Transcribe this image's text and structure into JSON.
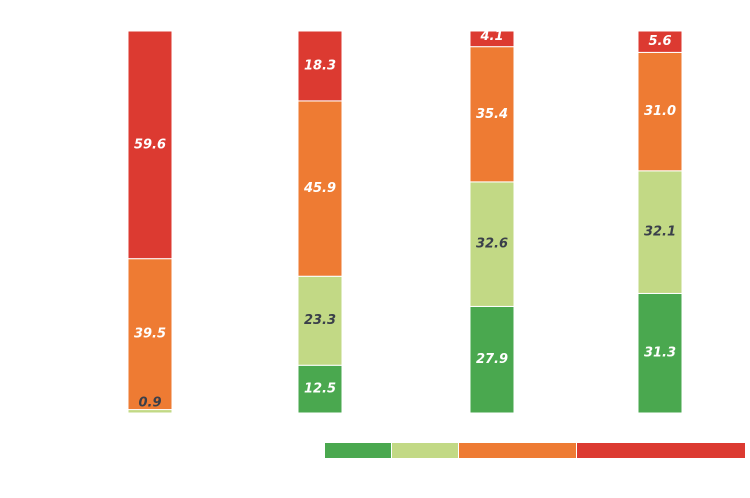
{
  "chart_data": {
    "type": "bar",
    "stacked": true,
    "title": "",
    "xlabel": "",
    "ylabel": "",
    "ylim": [
      0,
      100
    ],
    "grid": false,
    "categories": [
      "",
      "",
      "",
      ""
    ],
    "series": [
      {
        "color": "#4aa84f",
        "text_color": "#ffffff",
        "values": [
          0,
          12.5,
          27.9,
          31.3
        ]
      },
      {
        "color": "#c2d985",
        "text_color": "#3a3f4a",
        "values": [
          0.9,
          23.3,
          32.6,
          32.1
        ]
      },
      {
        "color": "#ee7b33",
        "text_color": "#ffffff",
        "values": [
          39.5,
          45.9,
          35.4,
          31.0
        ]
      },
      {
        "color": "#dc3a31",
        "text_color": "#ffffff",
        "values": [
          59.6,
          18.3,
          4.1,
          5.6
        ]
      }
    ],
    "legend": {
      "placement": "bottom-right",
      "entries": [
        {
          "color": "#4aa84f"
        },
        {
          "color": "#c2d985"
        },
        {
          "color": "#ee7b33"
        },
        {
          "color": "#dc3a31"
        }
      ]
    }
  }
}
